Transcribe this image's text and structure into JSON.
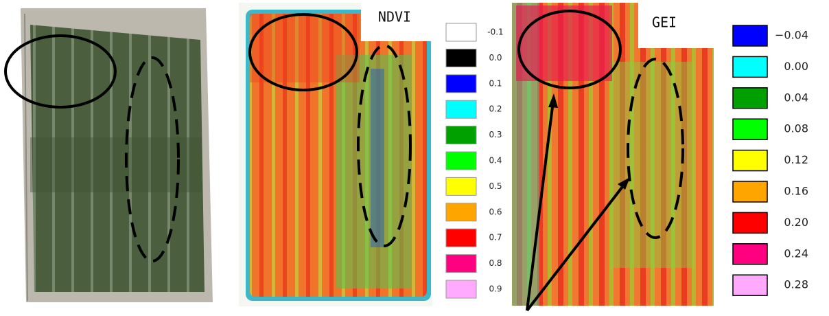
{
  "ndvi": {
    "title": "NDVI",
    "legend": [
      {
        "label": "-0.1",
        "color": "#ffffff"
      },
      {
        "label": "0.0",
        "color": "#000000"
      },
      {
        "label": "0.1",
        "color": "#0000ff"
      },
      {
        "label": "0.2",
        "color": "#00ffff"
      },
      {
        "label": "0.3",
        "color": "#00a000"
      },
      {
        "label": "0.4",
        "color": "#00ff00"
      },
      {
        "label": "0.5",
        "color": "#ffff00"
      },
      {
        "label": "0.6",
        "color": "#ffa500"
      },
      {
        "label": "0.7",
        "color": "#ff0000"
      },
      {
        "label": "0.8",
        "color": "#ff0080"
      },
      {
        "label": "0.9",
        "color": "#ffaaff"
      }
    ]
  },
  "gei": {
    "title": "GEI",
    "legend": [
      {
        "label": "−0.04",
        "color": "#0000ff"
      },
      {
        "label": "0.00",
        "color": "#00ffff"
      },
      {
        "label": "0.04",
        "color": "#00a000"
      },
      {
        "label": "0.08",
        "color": "#00ff00"
      },
      {
        "label": "0.12",
        "color": "#ffff00"
      },
      {
        "label": "0.16",
        "color": "#ffa500"
      },
      {
        "label": "0.20",
        "color": "#ff0000"
      },
      {
        "label": "0.24",
        "color": "#ff0080"
      },
      {
        "label": "0.28",
        "color": "#ffaaff"
      }
    ]
  }
}
